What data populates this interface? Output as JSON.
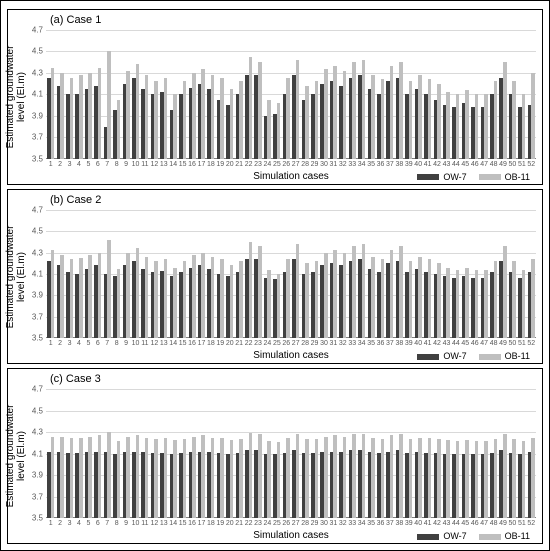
{
  "ylabel": "Estimated groundwater\nlevel (El.m)",
  "xlabel": "Simulation cases",
  "legend": {
    "series1": "OW-7",
    "series2": "OB-11"
  },
  "colors": {
    "series1": "#404040",
    "series2": "#bfbfbf",
    "grid": "#d9d9d9",
    "axis": "#808080",
    "bg": "#ffffff",
    "border": "#000000"
  },
  "y_axis": {
    "min": 3.5,
    "max": 4.7,
    "step": 0.2,
    "fontsize": 8
  },
  "x_axis": {
    "min": 1,
    "max": 52,
    "fontsize": 7
  },
  "title_fontsize": 11,
  "label_fontsize": 10,
  "bar_gap_ratio": 0.25,
  "panels": [
    {
      "title": "(a) Case 1",
      "s1": [
        4.25,
        4.18,
        4.1,
        4.1,
        4.15,
        4.18,
        3.8,
        3.95,
        4.2,
        4.25,
        4.15,
        4.1,
        4.12,
        3.95,
        4.1,
        4.16,
        4.2,
        4.15,
        4.05,
        4.0,
        4.1,
        4.28,
        4.28,
        3.9,
        3.92,
        4.1,
        4.28,
        4.05,
        4.1,
        4.2,
        4.22,
        4.18,
        4.25,
        4.28,
        4.15,
        4.1,
        4.22,
        4.25,
        4.1,
        4.15,
        4.1,
        4.05,
        4.0,
        3.98,
        4.02,
        3.98,
        3.98,
        4.1,
        4.25,
        4.1,
        3.98,
        4.0
      ],
      "s2": [
        4.35,
        4.3,
        4.25,
        4.28,
        4.3,
        4.35,
        4.5,
        4.05,
        4.32,
        4.38,
        4.28,
        4.22,
        4.25,
        4.1,
        4.22,
        4.3,
        4.34,
        4.28,
        4.25,
        4.15,
        4.22,
        4.45,
        4.4,
        4.05,
        4.02,
        4.25,
        4.42,
        4.18,
        4.22,
        4.34,
        4.36,
        4.32,
        4.4,
        4.42,
        4.28,
        4.24,
        4.36,
        4.4,
        4.22,
        4.28,
        4.24,
        4.2,
        4.12,
        4.1,
        4.14,
        4.1,
        4.1,
        4.22,
        4.4,
        4.22,
        4.1,
        4.3
      ],
      "anomalies": []
    },
    {
      "title": "(b) Case 2",
      "s1": [
        4.22,
        4.18,
        4.12,
        4.1,
        4.15,
        4.18,
        4.1,
        4.08,
        4.18,
        4.22,
        4.15,
        4.12,
        4.13,
        4.08,
        4.12,
        4.16,
        4.18,
        4.15,
        4.1,
        4.08,
        4.12,
        4.24,
        4.24,
        4.06,
        4.05,
        4.12,
        4.24,
        4.1,
        4.12,
        4.18,
        4.2,
        4.18,
        4.22,
        4.24,
        4.15,
        4.12,
        4.2,
        4.22,
        4.12,
        4.15,
        4.12,
        4.1,
        4.08,
        4.06,
        4.08,
        4.06,
        4.06,
        4.12,
        4.22,
        4.12,
        4.06,
        4.12
      ],
      "s2": [
        4.32,
        4.28,
        4.24,
        4.25,
        4.28,
        4.3,
        4.42,
        4.15,
        4.3,
        4.34,
        4.26,
        4.22,
        4.24,
        4.16,
        4.22,
        4.28,
        4.3,
        4.26,
        4.24,
        4.18,
        4.22,
        4.4,
        4.36,
        4.14,
        4.1,
        4.24,
        4.38,
        4.2,
        4.22,
        4.3,
        4.32,
        4.3,
        4.36,
        4.38,
        4.26,
        4.24,
        4.32,
        4.36,
        4.22,
        4.26,
        4.24,
        4.2,
        4.16,
        4.14,
        4.16,
        4.14,
        4.14,
        4.22,
        4.36,
        4.22,
        4.14,
        4.24
      ],
      "anomalies": []
    },
    {
      "title": "(c) Case 3",
      "s1": [
        4.12,
        4.12,
        4.11,
        4.11,
        4.12,
        4.12,
        4.12,
        4.1,
        4.12,
        4.12,
        4.12,
        4.11,
        4.11,
        4.1,
        4.11,
        4.12,
        4.12,
        4.12,
        4.11,
        4.1,
        4.11,
        4.13,
        4.13,
        4.1,
        4.1,
        4.11,
        4.13,
        4.11,
        4.11,
        4.12,
        4.12,
        4.12,
        4.13,
        4.13,
        4.12,
        4.11,
        4.12,
        4.13,
        4.11,
        4.12,
        4.11,
        4.11,
        4.1,
        4.1,
        4.1,
        4.1,
        4.1,
        4.11,
        4.13,
        4.11,
        4.1,
        4.12
      ],
      "s2": [
        4.26,
        4.26,
        4.25,
        4.25,
        4.26,
        4.27,
        4.3,
        4.22,
        4.26,
        4.27,
        4.25,
        4.24,
        4.25,
        4.23,
        4.24,
        4.26,
        4.27,
        4.25,
        4.25,
        4.23,
        4.24,
        4.29,
        4.28,
        4.22,
        4.21,
        4.25,
        4.28,
        4.24,
        4.24,
        4.26,
        4.27,
        4.26,
        4.28,
        4.28,
        4.25,
        4.24,
        4.27,
        4.28,
        4.24,
        4.25,
        4.25,
        4.24,
        4.23,
        4.22,
        4.23,
        4.22,
        4.22,
        4.24,
        4.28,
        4.24,
        4.22,
        4.25
      ],
      "anomalies": []
    }
  ]
}
